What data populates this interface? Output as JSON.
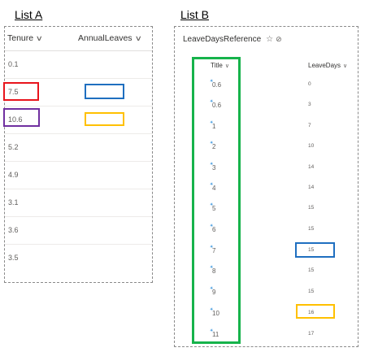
{
  "list_a": {
    "heading": "List A",
    "columns": {
      "tenure": "Tenure",
      "annual_leaves": "AnnualLeaves"
    },
    "rows": [
      "0.1",
      "7.5",
      "10.6",
      "5.2",
      "4.9",
      "3.1",
      "3.6",
      "3.5"
    ]
  },
  "list_b": {
    "heading": "List B",
    "list_title": "LeaveDaysReference",
    "star_icon": "☆",
    "sync_icon": "⊘",
    "columns": {
      "title": "Title",
      "leave_days": "LeaveDays"
    },
    "rows": [
      {
        "title": "0.6",
        "leave_days": "0"
      },
      {
        "title": "0.6",
        "leave_days": "3"
      },
      {
        "title": "1",
        "leave_days": "7"
      },
      {
        "title": "2",
        "leave_days": "10"
      },
      {
        "title": "3",
        "leave_days": "14"
      },
      {
        "title": "4",
        "leave_days": "14"
      },
      {
        "title": "5",
        "leave_days": "15"
      },
      {
        "title": "6",
        "leave_days": "15"
      },
      {
        "title": "7",
        "leave_days": "15"
      },
      {
        "title": "8",
        "leave_days": "15"
      },
      {
        "title": "9",
        "leave_days": "15"
      },
      {
        "title": "10",
        "leave_days": "16"
      },
      {
        "title": "11",
        "leave_days": "17"
      }
    ]
  },
  "icons": {
    "chevron": "chevron-down-icon",
    "new_item": "new-item-sparkle-icon"
  },
  "colors": {
    "highlight_red": "#e8141c",
    "highlight_purple": "#7030a0",
    "highlight_blue": "#1f6fc0",
    "highlight_yellow": "#ffc000",
    "highlight_green": "#16b34b"
  }
}
